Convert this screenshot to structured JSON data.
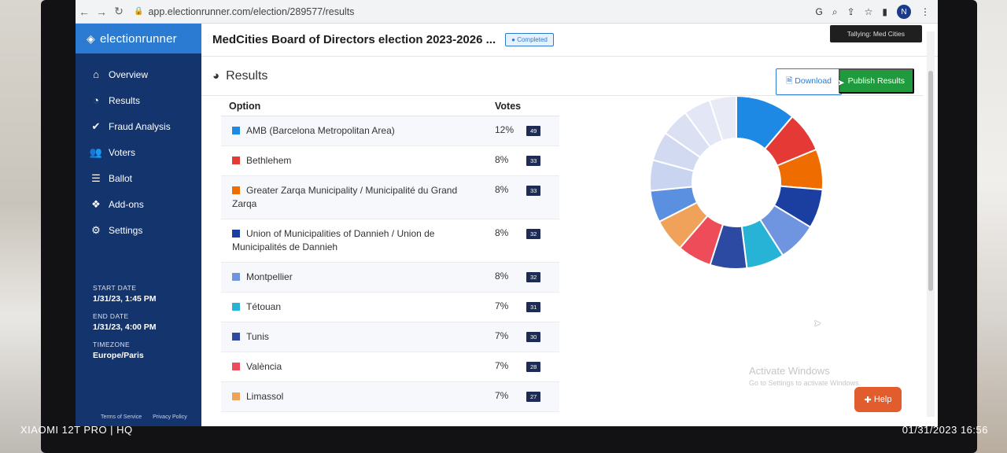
{
  "browser": {
    "url": "app.electionrunner.com/election/289577/results",
    "avatar_initial": "N"
  },
  "sidebar": {
    "logo": "electionrunner",
    "items": [
      {
        "label": "Overview",
        "icon": "home-icon"
      },
      {
        "label": "Results",
        "icon": "pie-chart-icon"
      },
      {
        "label": "Fraud Analysis",
        "icon": "check-icon"
      },
      {
        "label": "Voters",
        "icon": "users-icon"
      },
      {
        "label": "Ballot",
        "icon": "list-icon"
      },
      {
        "label": "Add-ons",
        "icon": "cubes-icon"
      },
      {
        "label": "Settings",
        "icon": "gear-icon"
      }
    ],
    "start_label": "START DATE",
    "start_value": "1/31/23, 1:45 PM",
    "end_label": "END DATE",
    "end_value": "1/31/23, 4:00 PM",
    "timezone_label": "TIMEZONE",
    "timezone_value": "Europe/Paris",
    "terms": "Terms of Service",
    "privacy": "Privacy Policy"
  },
  "header": {
    "title": "MedCities Board of Directors election 2023-2026 ...",
    "status": "Completed",
    "tooltip": "Tallying: Med Cities"
  },
  "results": {
    "title": "Results",
    "download_label": "Download",
    "publish_label": "Publish Results",
    "col_option": "Option",
    "col_votes": "Votes",
    "rows": [
      {
        "option": "AMB (Barcelona Metropolitan Area)",
        "pct": "12%",
        "count": "49",
        "color": "#1e88e5"
      },
      {
        "option": "Bethlehem",
        "pct": "8%",
        "count": "33",
        "color": "#e53935"
      },
      {
        "option": "Greater Zarqa Municipality / Municipalité du Grand Zarqa",
        "pct": "8%",
        "count": "33",
        "color": "#ef6c00"
      },
      {
        "option": "Union of Municipalities of Dannieh / Union de Municipalités de Dannieh",
        "pct": "8%",
        "count": "32",
        "color": "#1a3fa0"
      },
      {
        "option": "Montpellier",
        "pct": "8%",
        "count": "32",
        "color": "#6f95e0"
      },
      {
        "option": "Tétouan",
        "pct": "7%",
        "count": "31",
        "color": "#26b3d6"
      },
      {
        "option": "Tunis",
        "pct": "7%",
        "count": "30",
        "color": "#2d4aa2"
      },
      {
        "option": "València",
        "pct": "7%",
        "count": "28",
        "color": "#ef4c5a"
      },
      {
        "option": "Limassol",
        "pct": "7%",
        "count": "27",
        "color": "#f0a15a"
      }
    ],
    "chart_colors_rest": [
      "#5b8fe0",
      "#c9d4f0",
      "#d2daf2",
      "#dbe1f3",
      "#e2e6f5",
      "#e8ebf6"
    ],
    "chart_values_rest": [
      26,
      25,
      24,
      23,
      22,
      22
    ]
  },
  "watermark": {
    "line1": "Activate Windows",
    "line2": "Go to Settings to activate Windows."
  },
  "help_label": "Help",
  "photo": {
    "camera": "XIAOMI 12T PRO | HQ",
    "datetime": "01/31/2023  16:56"
  }
}
